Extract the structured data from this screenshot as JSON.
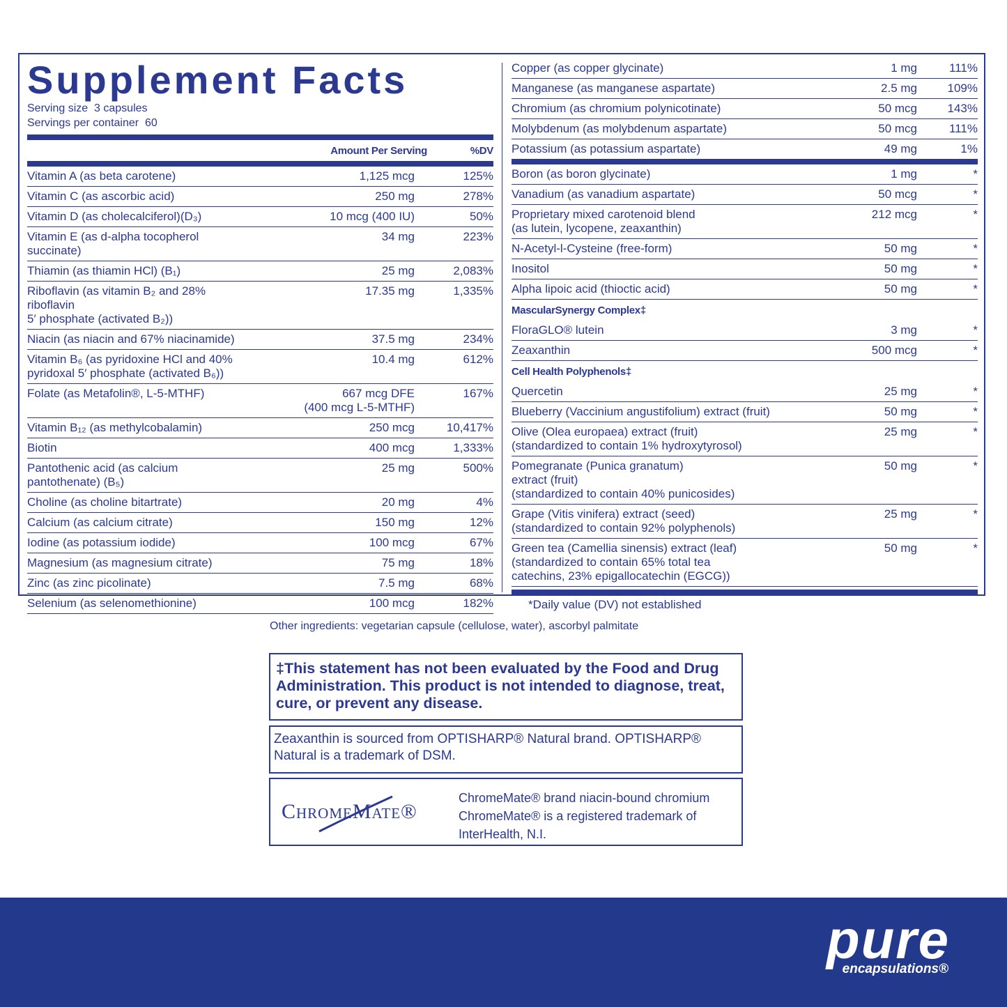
{
  "title": "Supplement Facts",
  "serving_size": "Serving size  3 capsules",
  "servings_per_container": "Servings per container  60",
  "table_header": {
    "amount": "Amount Per Serving",
    "dv": "%DV"
  },
  "left_rows": [
    {
      "name": "Vitamin A (as beta carotene)",
      "amount": "1,125 mcg",
      "dv": "125%"
    },
    {
      "name": "Vitamin C (as ascorbic acid)",
      "amount": "250 mg",
      "dv": "278%"
    },
    {
      "name": "Vitamin D (as cholecalciferol)(D₃)",
      "amount": "10 mcg (400 IU)",
      "dv": "50%"
    },
    {
      "name": "Vitamin E (as d-alpha tocopherol succinate)",
      "amount": "34 mg",
      "dv": "223%"
    },
    {
      "name": "Thiamin (as thiamin HCl) (B₁)",
      "amount": "25 mg",
      "dv": "2,083%"
    },
    {
      "name": "Riboflavin (as vitamin B₂ and 28% riboflavin\n5′ phosphate (activated B₂))",
      "amount": "17.35 mg",
      "dv": "1,335%"
    },
    {
      "name": "Niacin (as niacin and 67% niacinamide)",
      "amount": "37.5 mg",
      "dv": "234%"
    },
    {
      "name": "Vitamin B₆ (as pyridoxine HCl and 40%\npyridoxal 5′ phosphate (activated B₆))",
      "amount": "10.4 mg",
      "dv": "612%"
    },
    {
      "name": "Folate (as Metafolin®, L-5-MTHF)",
      "amount": "667 mcg DFE\n(400 mcg L-5-MTHF)",
      "dv": "167%"
    },
    {
      "name": "Vitamin B₁₂ (as methylcobalamin)",
      "amount": "250 mcg",
      "dv": "10,417%"
    },
    {
      "name": "Biotin",
      "amount": "400 mcg",
      "dv": "1,333%"
    },
    {
      "name": "Pantothenic acid (as calcium pantothenate) (B₅)",
      "amount": "25 mg",
      "dv": "500%"
    },
    {
      "name": "Choline (as choline bitartrate)",
      "amount": "20 mg",
      "dv": "4%"
    },
    {
      "name": "Calcium (as calcium citrate)",
      "amount": "150 mg",
      "dv": "12%"
    },
    {
      "name": "Iodine (as potassium iodide)",
      "amount": "100 mcg",
      "dv": "67%"
    },
    {
      "name": "Magnesium (as magnesium citrate)",
      "amount": "75 mg",
      "dv": "18%"
    },
    {
      "name": "Zinc (as zinc picolinate)",
      "amount": "7.5 mg",
      "dv": "68%"
    },
    {
      "name": "Selenium (as selenomethionine)",
      "amount": "100 mcg",
      "dv": "182%"
    }
  ],
  "right_top_rows": [
    {
      "name": "Copper (as copper glycinate)",
      "amount": "1 mg",
      "dv": "111%"
    },
    {
      "name": "Manganese (as manganese aspartate)",
      "amount": "2.5 mg",
      "dv": "109%"
    },
    {
      "name": "Chromium (as chromium polynicotinate)",
      "amount": "50 mcg",
      "dv": "143%"
    },
    {
      "name": "Molybdenum (as molybdenum aspartate)",
      "amount": "50 mcg",
      "dv": "111%"
    },
    {
      "name": "Potassium (as potassium aspartate)",
      "amount": "49 mg",
      "dv": "1%"
    }
  ],
  "right_bottom_rows": [
    {
      "name": "Boron (as boron glycinate)",
      "amount": "1 mg",
      "dv": "*"
    },
    {
      "name": "Vanadium (as vanadium aspartate)",
      "amount": "50 mcg",
      "dv": "*"
    },
    {
      "name": "Proprietary mixed carotenoid blend\n(as lutein, lycopene, zeaxanthin)",
      "amount": "212 mcg",
      "dv": "*"
    },
    {
      "name": "N-Acetyl-l-Cysteine (free-form)",
      "amount": "50 mg",
      "dv": "*"
    },
    {
      "name": "Inositol",
      "amount": "50 mg",
      "dv": "*"
    },
    {
      "name": "Alpha lipoic acid (thioctic acid)",
      "amount": "50 mg",
      "dv": "*"
    },
    {
      "heading": "MascularSynergy Complex‡"
    },
    {
      "name": "FloraGLO® lutein",
      "amount": "3 mg",
      "dv": "*"
    },
    {
      "name": "Zeaxanthin",
      "amount": "500 mcg",
      "dv": "*"
    },
    {
      "heading": "Cell Health Polyphenols‡"
    },
    {
      "name": "Quercetin",
      "amount": "25 mg",
      "dv": "*"
    },
    {
      "name": "Blueberry (Vaccinium angustifolium) extract (fruit)",
      "amount": "50 mg",
      "dv": "*"
    },
    {
      "name": "Olive (Olea europaea) extract (fruit)\n   (standardized to contain 1% hydroxytyrosol)",
      "amount": "25 mg",
      "dv": "*"
    },
    {
      "name": "Pomegranate (Punica granatum)\nextract (fruit)\n   (standardized to contain 40% punicosides)",
      "amount": "50 mg",
      "dv": "*"
    },
    {
      "name": "Grape (Vitis vinifera) extract (seed)\n   (standardized to contain 92% polyphenols)",
      "amount": "25 mg",
      "dv": "*"
    },
    {
      "name": "Green tea (Camellia sinensis) extract (leaf)\n   (standardized to contain 65% total tea\n   catechins, 23% epigallocatechin (EGCG))",
      "amount": "50 mg",
      "dv": "*"
    }
  ],
  "footnote": "*Daily value (DV) not established",
  "other_ingredients": "Other ingredients: vegetarian capsule (cellulose, water), ascorbyl palmitate",
  "disclaimer": "‡This statement has not been evaluated by the Food and Drug Administration. This product is not intended to diagnose, treat, cure, or prevent any disease.",
  "zeaxanthin_note": "Zeaxanthin is sourced from OPTISHARP® Natural brand. OPTISHARP® Natural is a trademark of DSM.",
  "chromemate": {
    "logo": "ChromeMate®",
    "note": "ChromeMate® brand niacin-bound chromium\nChromeMate® is a registered trademark of\nInterHealth, N.I."
  },
  "brand": {
    "name": "pure",
    "tagline": "encapsulations®"
  }
}
